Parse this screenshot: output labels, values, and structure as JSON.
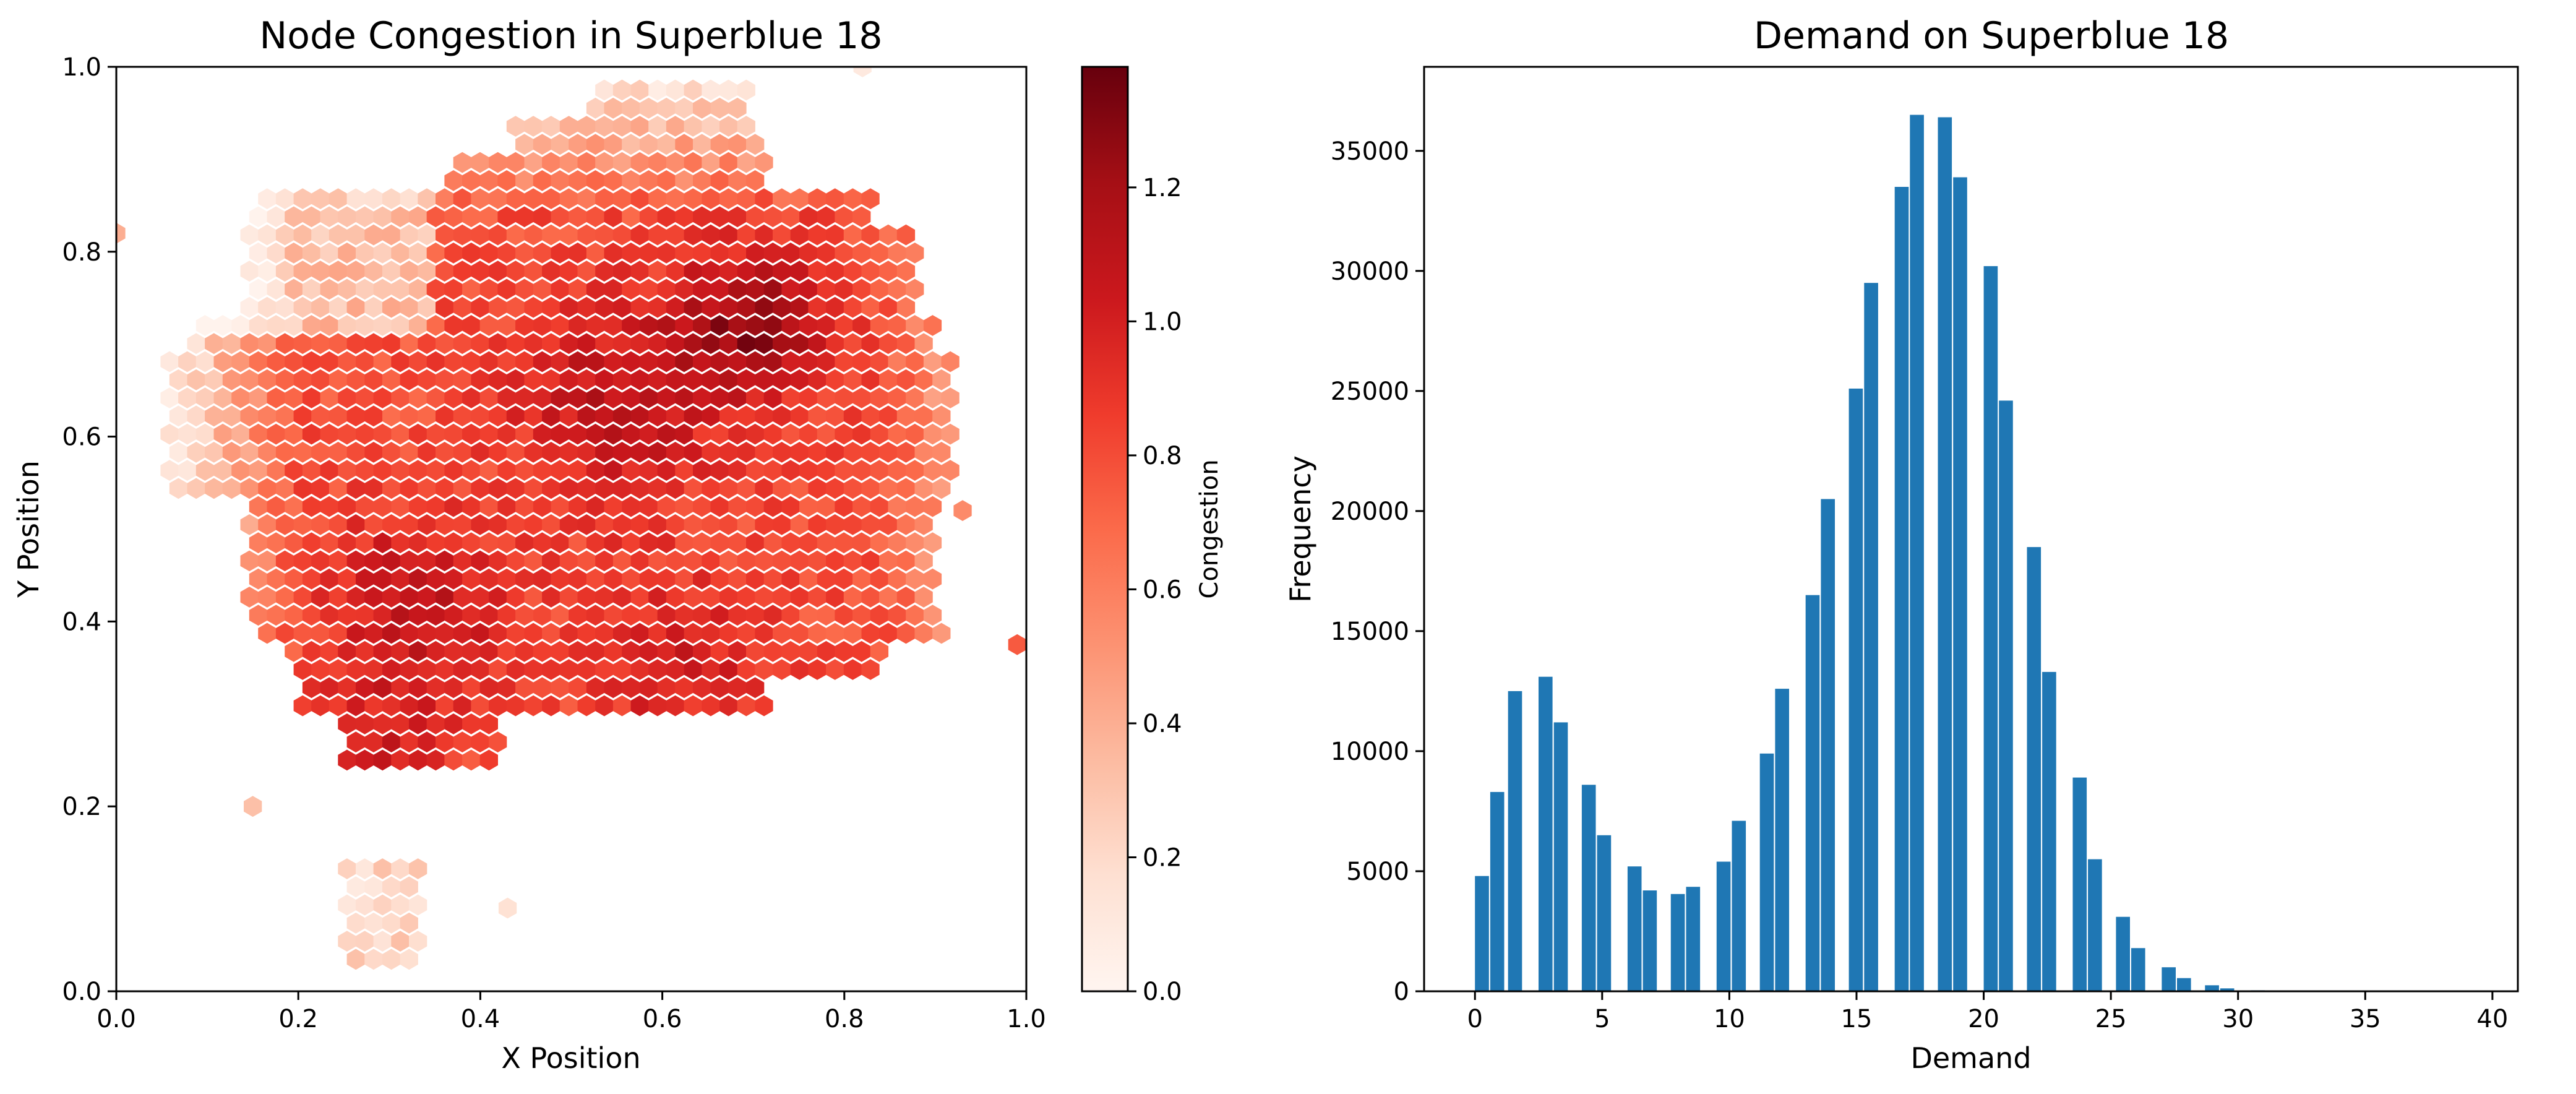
{
  "chart_data": [
    {
      "type": "heatmap",
      "subtype": "hexbin",
      "title": "Node Congestion in Superblue 18",
      "xlabel": "X Position",
      "ylabel": "Y Position",
      "xlim": [
        0.0,
        1.0
      ],
      "ylim": [
        0.0,
        1.0
      ],
      "xticks": [
        "0.0",
        "0.2",
        "0.4",
        "0.6",
        "0.8",
        "1.0"
      ],
      "yticks": [
        "0.0",
        "0.2",
        "0.4",
        "0.6",
        "0.8",
        "1.0"
      ],
      "colorbar": {
        "label": "Congestion",
        "range": [
          0.0,
          1.38
        ],
        "ticks": [
          "0.0",
          "0.2",
          "0.4",
          "0.6",
          "0.8",
          "1.0",
          "1.2"
        ],
        "colormap": "Reds"
      },
      "grid": false,
      "description_of_field": "Dense cluster covering roughly x 0.05-0.92, y 0.25-0.97; highest congestion (~1.2-1.38) near (0.70, 0.72), (0.55, 0.65), (0.32, 0.40); low congestion (~0.1-0.3) at left edge x<0.2 and top region y>0.85; small separate low cluster near x 0.25-0.33, y 0.02-0.15; isolated cells near (0.15, 0.2), (0.43, 0.09), (0.93, 0.52), (0.99, 0.38), (0.0, 0.82)."
    },
    {
      "type": "bar",
      "subtype": "histogram",
      "title": "Demand on Superblue 18",
      "xlabel": "Demand",
      "ylabel": "Frequency",
      "xlim": [
        -2,
        41
      ],
      "ylim": [
        0,
        38500
      ],
      "xticks": [
        "0",
        "5",
        "10",
        "15",
        "20",
        "25",
        "30",
        "35",
        "40"
      ],
      "yticks": [
        "0",
        "5000",
        "10000",
        "15000",
        "20000",
        "25000",
        "30000",
        "35000"
      ],
      "color": "#1f77b4",
      "grid": false,
      "x": [
        0,
        0.6,
        1.3,
        2.5,
        3.1,
        4.2,
        4.8,
        6.0,
        6.6,
        7.7,
        8.3,
        9.5,
        10.1,
        11.2,
        11.8,
        13.0,
        13.6,
        14.7,
        15.3,
        16.5,
        17.1,
        18.2,
        18.8,
        20.0,
        20.6,
        21.7,
        22.3,
        23.5,
        24.1,
        25.2,
        25.8,
        27.0,
        27.6,
        28.7,
        29.3,
        30.5,
        31.1,
        32.2,
        32.8,
        34.0,
        34.6,
        35.7,
        36.3,
        37.5,
        38.1,
        39.2
      ],
      "values": [
        4800,
        8300,
        12500,
        13100,
        11200,
        8600,
        6500,
        5200,
        4200,
        4050,
        4350,
        5400,
        7100,
        9900,
        12600,
        16500,
        20500,
        25100,
        29500,
        33500,
        36500,
        36400,
        33900,
        30200,
        24600,
        18500,
        13300,
        8900,
        5500,
        3100,
        1800,
        1000,
        550,
        250,
        120,
        40,
        15,
        5,
        2,
        1,
        0,
        0,
        0,
        0,
        0,
        0
      ],
      "bar_width": 0.55
    }
  ]
}
